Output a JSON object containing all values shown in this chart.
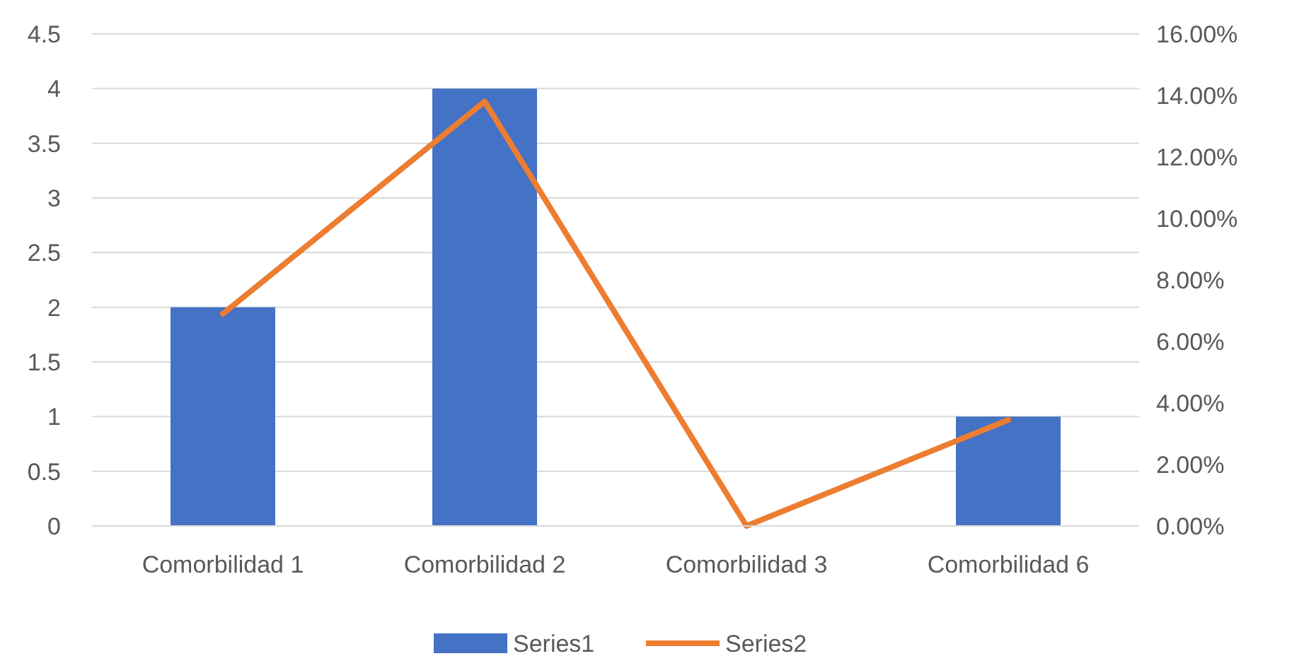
{
  "chart_data": {
    "type": "bar",
    "categories": [
      "Comorbilidad 1",
      "Comorbilidad 2",
      "Comorbilidad 3",
      "Comorbilidad 6"
    ],
    "series": [
      {
        "name": "Series1",
        "color": "#4472c4",
        "values": [
          2,
          4,
          0,
          1
        ]
      },
      {
        "name": "Series2",
        "type": "line",
        "axis": "y2",
        "color": "#ed7d31",
        "values": [
          6.9,
          13.8,
          0,
          3.45
        ]
      }
    ],
    "ylim": [
      0,
      4.5
    ],
    "yticks": [
      0,
      0.5,
      1,
      1.5,
      2,
      2.5,
      3,
      3.5,
      4,
      4.5
    ],
    "y2lim": [
      0,
      16
    ],
    "y2ticks": [
      {
        "value": 0,
        "label": "0.00%"
      },
      {
        "value": 2,
        "label": "2.00%"
      },
      {
        "value": 4,
        "label": "4.00%"
      },
      {
        "value": 6,
        "label": "6.00%"
      },
      {
        "value": 8,
        "label": "8.00%"
      },
      {
        "value": 10,
        "label": "10.00%"
      },
      {
        "value": 12,
        "label": "12.00%"
      },
      {
        "value": 14,
        "label": "14.00%"
      },
      {
        "value": 16,
        "label": "16.00%"
      }
    ],
    "grid": "y",
    "legend": "bottom",
    "line_style": "solid",
    "marker": "none"
  }
}
